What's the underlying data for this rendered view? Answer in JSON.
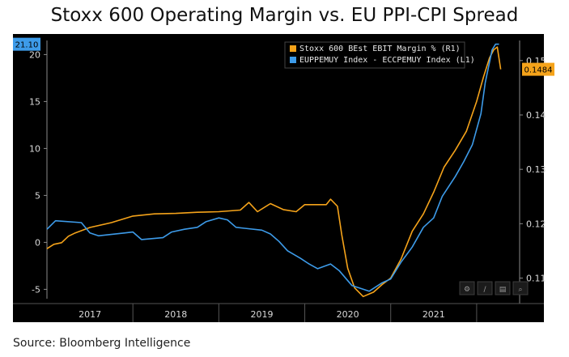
{
  "title": "Stoxx 600 Operating Margin vs. EU PPI-CPI Spread",
  "source": "Source: Bloomberg Intelligence",
  "toolbar_icons": [
    "settings-icon",
    "draw-line-icon",
    "chart-type-icon",
    "zoom-icon"
  ],
  "colors": {
    "margin": "#f5a31a",
    "spread": "#3d9be9",
    "background": "#000000",
    "grid": "#3a3a3a"
  },
  "chart_data": {
    "type": "line",
    "title": "Stoxx 600 Operating Margin vs. EU PPI-CPI Spread",
    "x_axis": {
      "labels": [
        "2017",
        "2018",
        "2019",
        "2020",
        "2021"
      ],
      "range": [
        2016.5,
        2022.0
      ]
    },
    "left_axis": {
      "range": [
        -6,
        21.5
      ],
      "ticks": [
        -5,
        0,
        5,
        10,
        15,
        20
      ]
    },
    "right_axis": {
      "range": [
        0.1062,
        0.1537
      ],
      "ticks": [
        0.11,
        0.12,
        0.13,
        0.14,
        0.15
      ]
    },
    "legend_position": "top-right",
    "grid": false,
    "series": [
      {
        "name": "Stoxx 600 BEst EBIT Margin % (R1)",
        "axis": "right",
        "color": "#f5a31a",
        "last_value_label": "0.1484",
        "points": [
          [
            2016.5,
            0.1154
          ],
          [
            2016.58,
            0.1162
          ],
          [
            2016.67,
            0.1165
          ],
          [
            2016.75,
            0.1177
          ],
          [
            2016.83,
            0.1183
          ],
          [
            2017.0,
            0.1193
          ],
          [
            2017.25,
            0.1202
          ],
          [
            2017.5,
            0.1214
          ],
          [
            2017.75,
            0.1218
          ],
          [
            2018.0,
            0.1219
          ],
          [
            2018.25,
            0.1221
          ],
          [
            2018.5,
            0.1222
          ],
          [
            2018.75,
            0.1225
          ],
          [
            2018.85,
            0.1239
          ],
          [
            2018.95,
            0.1222
          ],
          [
            2019.1,
            0.1237
          ],
          [
            2019.25,
            0.1226
          ],
          [
            2019.4,
            0.1222
          ],
          [
            2019.5,
            0.1235
          ],
          [
            2019.75,
            0.1235
          ],
          [
            2019.8,
            0.1245
          ],
          [
            2019.88,
            0.1232
          ],
          [
            2019.93,
            0.118
          ],
          [
            2020.0,
            0.1118
          ],
          [
            2020.08,
            0.1082
          ],
          [
            2020.18,
            0.1066
          ],
          [
            2020.3,
            0.1074
          ],
          [
            2020.4,
            0.1088
          ],
          [
            2020.5,
            0.11
          ],
          [
            2020.62,
            0.1135
          ],
          [
            2020.75,
            0.1186
          ],
          [
            2020.88,
            0.1218
          ],
          [
            2021.0,
            0.1258
          ],
          [
            2021.12,
            0.1304
          ],
          [
            2021.25,
            0.1335
          ],
          [
            2021.38,
            0.137
          ],
          [
            2021.5,
            0.1425
          ],
          [
            2021.58,
            0.147
          ],
          [
            2021.65,
            0.1505
          ],
          [
            2021.7,
            0.152
          ],
          [
            2021.74,
            0.1525
          ],
          [
            2021.78,
            0.1484
          ]
        ]
      },
      {
        "name": "EUPPEMUY Index - ECCPEMUY Index (L1)",
        "axis": "left",
        "color": "#3d9be9",
        "last_value_label": "21.10",
        "points": [
          [
            2016.5,
            1.4
          ],
          [
            2016.6,
            2.3
          ],
          [
            2016.9,
            2.1
          ],
          [
            2017.0,
            1.0
          ],
          [
            2017.1,
            0.7
          ],
          [
            2017.4,
            1.0
          ],
          [
            2017.5,
            1.1
          ],
          [
            2017.6,
            0.3
          ],
          [
            2017.85,
            0.5
          ],
          [
            2017.95,
            1.1
          ],
          [
            2018.1,
            1.4
          ],
          [
            2018.25,
            1.6
          ],
          [
            2018.35,
            2.2
          ],
          [
            2018.5,
            2.6
          ],
          [
            2018.6,
            2.4
          ],
          [
            2018.7,
            1.6
          ],
          [
            2018.8,
            1.5
          ],
          [
            2019.0,
            1.3
          ],
          [
            2019.1,
            0.9
          ],
          [
            2019.2,
            0.1
          ],
          [
            2019.3,
            -0.9
          ],
          [
            2019.45,
            -1.7
          ],
          [
            2019.55,
            -2.3
          ],
          [
            2019.65,
            -2.8
          ],
          [
            2019.8,
            -2.3
          ],
          [
            2019.9,
            -3.0
          ],
          [
            2020.05,
            -4.6
          ],
          [
            2020.25,
            -5.2
          ],
          [
            2020.4,
            -4.3
          ],
          [
            2020.5,
            -3.9
          ],
          [
            2020.62,
            -2.1
          ],
          [
            2020.75,
            -0.5
          ],
          [
            2020.88,
            1.6
          ],
          [
            2021.0,
            2.6
          ],
          [
            2021.1,
            4.9
          ],
          [
            2021.25,
            7.0
          ],
          [
            2021.35,
            8.6
          ],
          [
            2021.45,
            10.4
          ],
          [
            2021.55,
            13.7
          ],
          [
            2021.6,
            17.0
          ],
          [
            2021.68,
            20.5
          ],
          [
            2021.72,
            21.1
          ],
          [
            2021.76,
            21.1
          ]
        ]
      }
    ]
  }
}
